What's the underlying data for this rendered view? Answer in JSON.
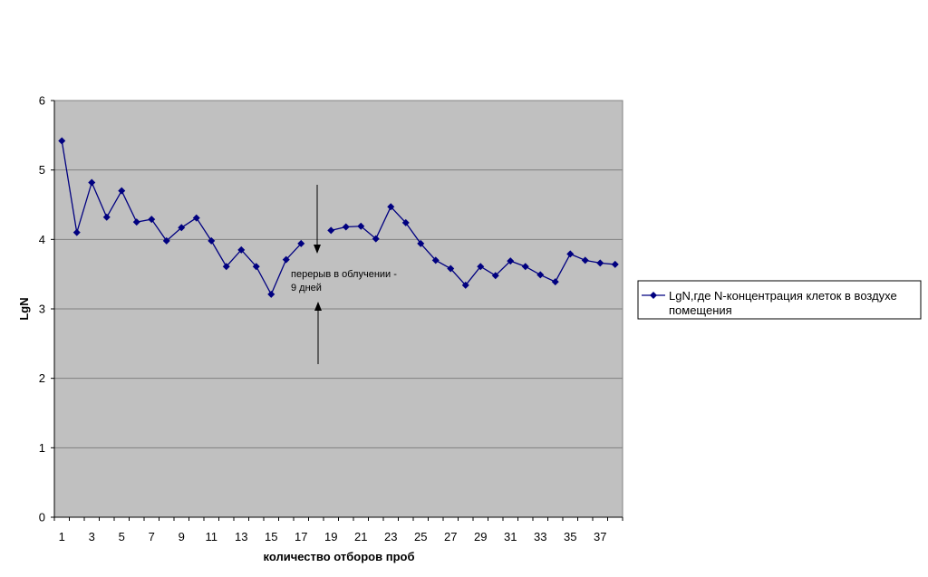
{
  "chart_data": {
    "type": "line",
    "title": "",
    "xlabel": "количество отборов проб",
    "ylabel": "LgN",
    "ylim": [
      0,
      6
    ],
    "yticks": [
      "0",
      "1",
      "2",
      "3",
      "4",
      "5",
      "6"
    ],
    "xtick_labels": [
      "1",
      "3",
      "5",
      "7",
      "9",
      "11",
      "13",
      "15",
      "17",
      "19",
      "21",
      "23",
      "25",
      "27",
      "29",
      "31",
      "33",
      "35",
      "37"
    ],
    "xtick_values": [
      1,
      3,
      5,
      7,
      9,
      11,
      13,
      15,
      17,
      19,
      21,
      23,
      25,
      27,
      29,
      31,
      33,
      35,
      37
    ],
    "x_count": 38,
    "grid": "horizontal",
    "plot_background": "#c0c0c0",
    "legend_position": "right",
    "series": [
      {
        "name": "LgN,где N-концентрация клеток в воздухе помещения",
        "color": "#000080",
        "segments": [
          {
            "x": [
              1,
              2,
              3,
              4,
              5,
              6,
              7,
              8,
              9,
              10,
              11,
              12,
              13,
              14,
              15,
              16,
              17
            ],
            "y": [
              5.42,
              4.1,
              4.82,
              4.32,
              4.7,
              4.25,
              4.29,
              3.98,
              4.17,
              4.31,
              3.98,
              3.61,
              3.85,
              3.61,
              3.21,
              3.71,
              3.94
            ]
          },
          {
            "x": [
              19,
              20,
              21,
              22,
              23,
              24,
              25,
              26,
              27,
              28,
              29,
              30,
              31,
              32,
              33,
              34,
              35,
              36,
              37,
              38
            ],
            "y": [
              4.13,
              4.18,
              4.19,
              4.01,
              4.47,
              4.24,
              3.94,
              3.7,
              3.58,
              3.34,
              3.61,
              3.48,
              3.69,
              3.61,
              3.49,
              3.39,
              3.79,
              3.7,
              3.66,
              3.64
            ]
          }
        ]
      }
    ],
    "annotation": {
      "line1": "перерыв в облучении  -",
      "line2": "9 дней"
    }
  }
}
